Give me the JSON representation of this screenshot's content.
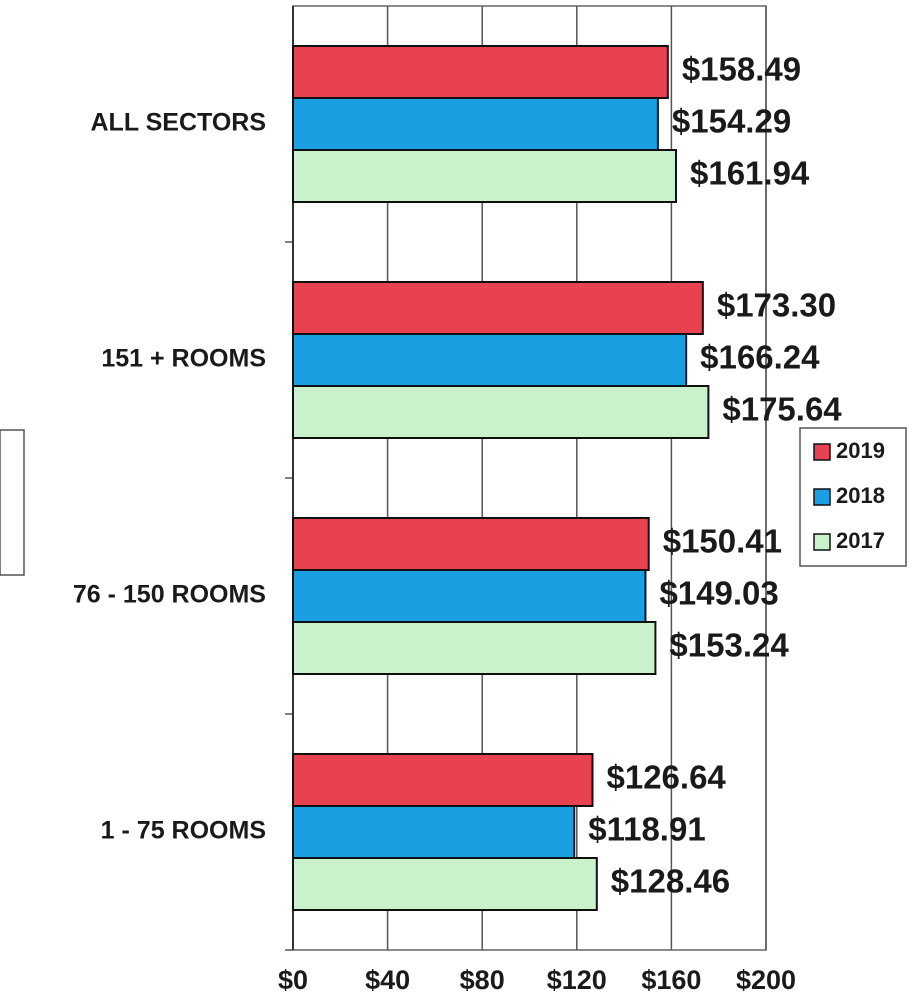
{
  "chart_data": {
    "type": "barh",
    "categories": [
      "ALL SECTORS",
      "151 + ROOMS",
      "76 - 150 ROOMS",
      "1 - 75 ROOMS"
    ],
    "series": [
      {
        "name": "2019",
        "color": "#e8414f",
        "values": [
          158.49,
          173.3,
          150.41,
          126.64
        ],
        "value_labels": [
          "$158.49",
          "$173.30",
          "$150.41",
          "$126.64"
        ]
      },
      {
        "name": "2018",
        "color": "#1a9fe2",
        "values": [
          154.29,
          166.24,
          149.03,
          118.91
        ],
        "value_labels": [
          "$154.29",
          "$166.24",
          "$149.03",
          "$118.91"
        ]
      },
      {
        "name": "2017",
        "color": "#c9f2cc",
        "values": [
          161.94,
          175.64,
          153.24,
          128.46
        ],
        "value_labels": [
          "$161.94",
          "$175.64",
          "$153.24",
          "$128.46"
        ]
      }
    ],
    "xlim": [
      0,
      200
    ],
    "xticks": [
      {
        "value": 0,
        "label": "$0"
      },
      {
        "value": 40,
        "label": "$40"
      },
      {
        "value": 80,
        "label": "$80"
      },
      {
        "value": 120,
        "label": "$120"
      },
      {
        "value": 160,
        "label": "$160"
      },
      {
        "value": 200,
        "label": "$200"
      }
    ],
    "grid": true,
    "legend": "right"
  }
}
